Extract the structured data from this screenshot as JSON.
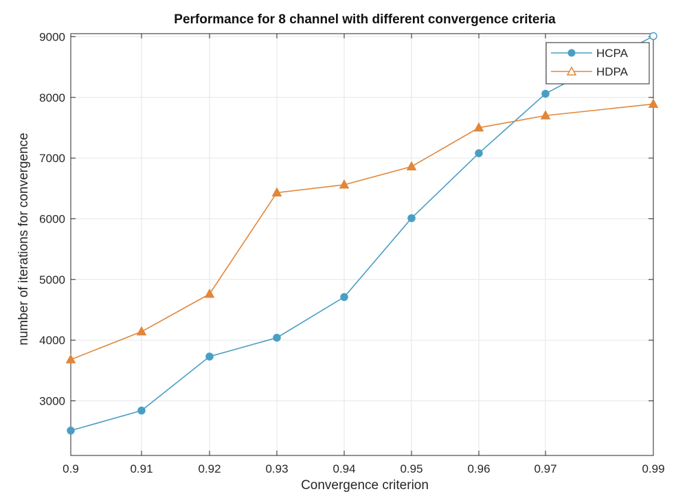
{
  "chart_data": {
    "type": "line",
    "title": "Performance for 8 channel with different convergence criteria",
    "xlabel": "Convergence criterion",
    "ylabel": "number of iterations for convergence",
    "x": [
      0.9,
      0.91,
      0.92,
      0.93,
      0.94,
      0.95,
      0.96,
      0.97,
      0.99
    ],
    "x_tick_labels": [
      "0.9",
      "0.91",
      "0.92",
      "0.93",
      "0.94",
      "0.95",
      "0.96",
      "0.97",
      "0.99"
    ],
    "x_positions_note": "categorical spacing",
    "y_ticks": [
      3000,
      4000,
      5000,
      6000,
      7000,
      8000,
      9000
    ],
    "y_tick_labels": [
      "3000",
      "4000",
      "5000",
      "6000",
      "7000",
      "8000",
      "9000"
    ],
    "ylim": [
      2100,
      9050
    ],
    "grid": true,
    "legend_position": "top-right",
    "series": [
      {
        "name": "HCPA",
        "color": "#4a9ec4",
        "marker": "circle",
        "values": [
          2510,
          2840,
          3730,
          4040,
          4710,
          6010,
          7080,
          8060,
          9010
        ]
      },
      {
        "name": "HDPA",
        "color": "#e0873a",
        "marker": "triangle",
        "values": [
          3680,
          4140,
          4760,
          6430,
          6560,
          6860,
          7500,
          7700,
          7890
        ]
      }
    ]
  }
}
